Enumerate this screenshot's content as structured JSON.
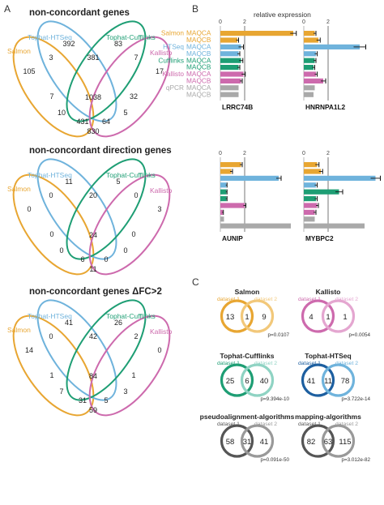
{
  "panels": {
    "a": "A",
    "b": "B",
    "c": "C"
  },
  "colors": {
    "salmon": "#e8a632",
    "htseq": "#6fb3dc",
    "cufflinks": "#1e9e74",
    "kallisto": "#cd6aad",
    "qpcr": "#a9a9a9",
    "deviation_line": "#555555"
  },
  "venn_sets": [
    "Salmon",
    "Tophat-HTSeq",
    "Tophat-Cufflinks",
    "Kallisto"
  ],
  "venns": [
    {
      "title": "non-concordant genes",
      "counts": {
        "salmon_only": "105",
        "htseq_only": "392",
        "cufflinks_only": "83",
        "kallisto_only": "17",
        "salmon_htseq": "3",
        "htseq_cufflinks": "381",
        "cufflinks_kallisto": "7",
        "salmon_cufflinks": "7",
        "htseq_kallisto": "32",
        "salmon_kallisto": "830",
        "salmon_htseq_cufflinks": "10",
        "htseq_cufflinks_kallisto": "5",
        "salmon_htseq_kallisto": "431",
        "salmon_cufflinks_kallisto": "64",
        "all_four": "1038"
      }
    },
    {
      "title": "non-concordant direction genes",
      "counts": {
        "salmon_only": "0",
        "htseq_only": "11",
        "cufflinks_only": "5",
        "kallisto_only": "3",
        "salmon_htseq": "0",
        "htseq_cufflinks": "20",
        "cufflinks_kallisto": "0",
        "salmon_cufflinks": "0",
        "htseq_kallisto": "0",
        "salmon_kallisto": "11",
        "salmon_htseq_cufflinks": "0",
        "htseq_cufflinks_kallisto": "0",
        "salmon_htseq_kallisto": "6",
        "salmon_cufflinks_kallisto": "0",
        "all_four": "24"
      }
    },
    {
      "title": "non-concordant genes ΔFC>2",
      "counts": {
        "salmon_only": "14",
        "htseq_only": "41",
        "cufflinks_only": "26",
        "kallisto_only": "0",
        "salmon_htseq": "0",
        "htseq_cufflinks": "42",
        "cufflinks_kallisto": "2",
        "salmon_cufflinks": "1",
        "htseq_kallisto": "1",
        "salmon_kallisto": "59",
        "salmon_htseq_cufflinks": "7",
        "htseq_cufflinks_kallisto": "3",
        "salmon_htseq_kallisto": "31",
        "salmon_cufflinks_kallisto": "5",
        "all_four": "84"
      }
    }
  ],
  "bar_legend": [
    {
      "left": "Salmon",
      "right": "MAQCA",
      "color": "#e8a632"
    },
    {
      "left": "",
      "right": "MAQCB",
      "color": "#e8a632"
    },
    {
      "left": "HTSeq",
      "right": "MAQCA",
      "color": "#6fb3dc"
    },
    {
      "left": "",
      "right": "MAQCB",
      "color": "#6fb3dc"
    },
    {
      "left": "Cufflinks",
      "right": "MAQCA",
      "color": "#1e9e74"
    },
    {
      "left": "",
      "right": "MAQCB",
      "color": "#1e9e74"
    },
    {
      "left": "Kallisto",
      "right": "MAQCA",
      "color": "#cd6aad"
    },
    {
      "left": "",
      "right": "MAQCB",
      "color": "#cd6aad"
    },
    {
      "left": "qPCR",
      "right": "MAQCA",
      "color": "#a9a9a9"
    },
    {
      "left": "",
      "right": "MAQCB",
      "color": "#a9a9a9"
    }
  ],
  "chart_data": {
    "type": "bar",
    "orientation": "horizontal",
    "xlabel": "relative expression",
    "xlim": [
      0,
      6
    ],
    "xticks": [
      "0",
      "2"
    ],
    "categories": [
      "Salmon MAQCA",
      "Salmon MAQCB",
      "HTSeq MAQCA",
      "HTSeq MAQCB",
      "Cufflinks MAQCA",
      "Cufflinks MAQCB",
      "Kallisto MAQCA",
      "Kallisto MAQCB",
      "qPCR MAQCA",
      "qPCR MAQCB"
    ],
    "genes": [
      {
        "name": "LRRC74B",
        "values": [
          6.0,
          1.4,
          1.7,
          1.5,
          1.7,
          1.5,
          1.9,
          1.7,
          1.5,
          1.5
        ],
        "errors": [
          0.25,
          0.1,
          0.2,
          0.1,
          0.15,
          0.1,
          0.15,
          0.1,
          0,
          0
        ]
      },
      {
        "name": "HNRNPA1L2",
        "values": [
          0.9,
          1.2,
          4.6,
          1.0,
          0.9,
          0.8,
          1.0,
          1.6,
          0.9,
          0.8
        ],
        "errors": [
          0.1,
          0.15,
          0.5,
          0.1,
          0.1,
          0.1,
          0.1,
          0.2,
          0,
          0
        ]
      },
      {
        "name": "AUNIP",
        "values": [
          1.7,
          0.9,
          4.8,
          0.5,
          0.5,
          0.5,
          2.0,
          0.2,
          0.3,
          5.8
        ],
        "errors": [
          0.1,
          0.1,
          0.2,
          0.05,
          0.05,
          0.05,
          0.1,
          0.05,
          0,
          0
        ]
      },
      {
        "name": "MYBPC2",
        "values": [
          1.1,
          1.4,
          5.9,
          1.0,
          2.9,
          1.0,
          1.1,
          0.9,
          0.9,
          5.0
        ],
        "errors": [
          0.15,
          0.15,
          0.4,
          0.1,
          0.3,
          0.1,
          0.1,
          0.1,
          0,
          0
        ]
      }
    ]
  },
  "venn2": [
    {
      "title": "Salmon",
      "ds1": "dataset 1",
      "ds2": "dataset 2",
      "left": "13",
      "mid": "1",
      "right": "9",
      "p": "p=0.0107",
      "c1": "#e8a632",
      "c2": "#f2c87a"
    },
    {
      "title": "Kallisto",
      "ds1": "dataset 1",
      "ds2": "dataset 2",
      "left": "4",
      "mid": "1",
      "right": "1",
      "p": "p=0.0054",
      "c1": "#cd6aad",
      "c2": "#e4a6d0"
    },
    {
      "title": "Tophat-Cufflinks",
      "ds1": "dataset 1",
      "ds2": "dataset 2",
      "left": "25",
      "mid": "6",
      "right": "40",
      "p": "p=9.394e-10",
      "c1": "#1e9e74",
      "c2": "#8fd3c3"
    },
    {
      "title": "Tophat-HTSeq",
      "ds1": "dataset 1",
      "ds2": "dataset 2",
      "left": "41",
      "mid": "11",
      "right": "78",
      "p": "p=3.722e-14",
      "c1": "#1d5fa0",
      "c2": "#6fb3dc"
    },
    {
      "title": "pseudoalignment-algorithms",
      "ds1": "dataset 1",
      "ds2": "dataset 2",
      "left": "58",
      "mid": "31",
      "right": "41",
      "p": "p=0.091e-50",
      "c1": "#555555",
      "c2": "#999999"
    },
    {
      "title": "mapping-algorithms",
      "ds1": "dataset 1",
      "ds2": "dataset 2",
      "left": "82",
      "mid": "63",
      "right": "115",
      "p": "p=3.012e-82",
      "c1": "#555555",
      "c2": "#999999"
    }
  ]
}
